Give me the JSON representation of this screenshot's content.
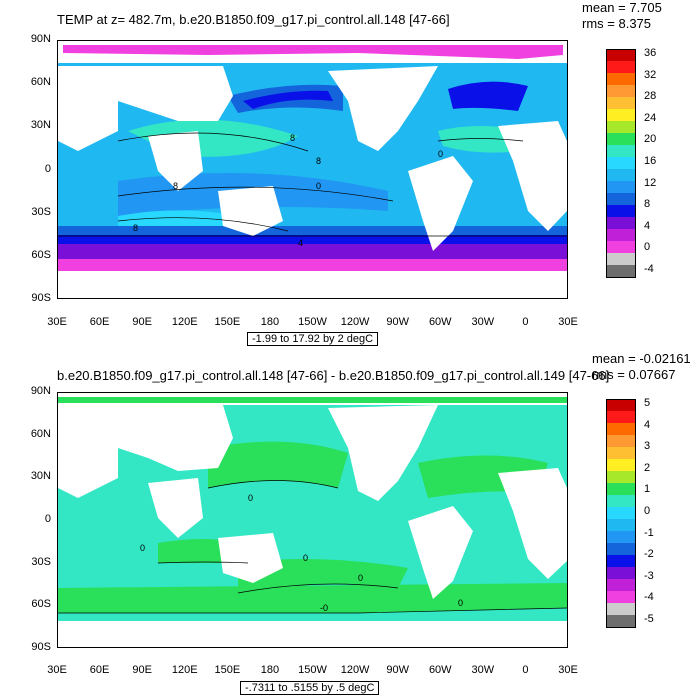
{
  "panel1": {
    "title": "TEMP at z= 482.7m, b.e20.B1850.f09_g17.pi_control.all.148 [47-66]",
    "mean": "mean = 7.705",
    "rms": "rms = 8.375",
    "range_note": "-1.99 to 17.92 by 2 degC",
    "colorbar": {
      "labels": [
        "36",
        "32",
        "28",
        "24",
        "20",
        "16",
        "12",
        "8",
        "4",
        "0",
        "-4"
      ],
      "colors": [
        "#c80000",
        "#ff1a1a",
        "#ff6a00",
        "#ff9933",
        "#ffbf33",
        "#ffee22",
        "#a8e82a",
        "#2adf5a",
        "#33e6c4",
        "#28d8ff",
        "#20b8f0",
        "#2196f3",
        "#1464dc",
        "#0a10e8",
        "#7a10d8",
        "#c020d8",
        "#f040e0",
        "#cccccc",
        "#6e6e6e"
      ]
    },
    "contour_labels": [
      "8",
      "8",
      "0",
      "8",
      "4",
      "8",
      "0"
    ]
  },
  "panel2": {
    "title": "b.e20.B1850.f09_g17.pi_control.all.148 [47-66] - b.e20.B1850.f09_g17.pi_control.all.149 [47-66]",
    "mean": "mean = -0.02161",
    "rms": "rms = 0.07667",
    "range_note": "-.7311 to .5155 by .5 degC",
    "colorbar": {
      "labels": [
        "5",
        "4",
        "3",
        "2",
        "1",
        "0",
        "-1",
        "-2",
        "-3",
        "-4",
        "-5"
      ],
      "colors": [
        "#c80000",
        "#ff1a1a",
        "#ff6a00",
        "#ff9933",
        "#ffbf33",
        "#ffee22",
        "#a8e82a",
        "#2adf5a",
        "#33e6c4",
        "#28d8ff",
        "#20b8f0",
        "#2196f3",
        "#1464dc",
        "#0a10e8",
        "#7a10d8",
        "#c020d8",
        "#f040e0",
        "#cccccc",
        "#6e6e6e"
      ]
    },
    "contour_labels": [
      "0",
      "0",
      "0",
      "0",
      "0",
      "-0"
    ]
  },
  "axes": {
    "lat_labels": [
      "90N",
      "60N",
      "30N",
      "0",
      "30S",
      "60S",
      "90S"
    ],
    "lon_labels": [
      "30E",
      "60E",
      "90E",
      "120E",
      "150E",
      "180",
      "150W",
      "120W",
      "90W",
      "60W",
      "30W",
      "0",
      "30E"
    ]
  },
  "colors": {
    "map1_background_band": "#28d8ff",
    "map2_background": "#33e6c4",
    "map2_patch": "#2adf5a"
  }
}
